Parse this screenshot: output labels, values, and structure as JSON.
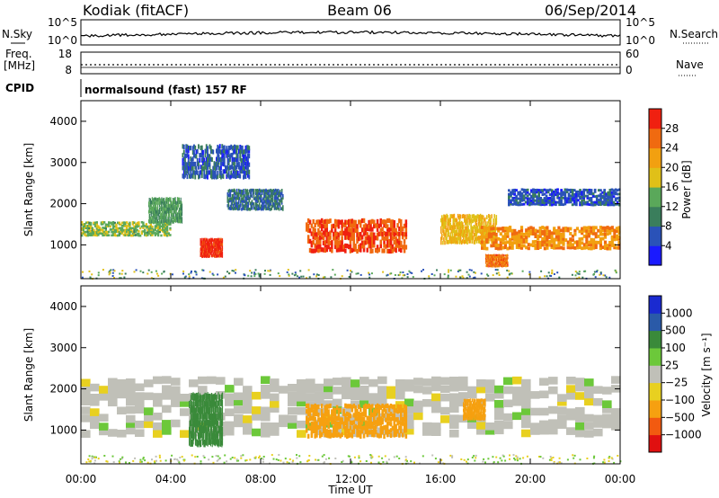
{
  "header": {
    "station": "Kodiak (fitACF)",
    "beam": "Beam 06",
    "date": "06/Sep/2014"
  },
  "aux_panels": {
    "nsky": {
      "left_label": "N.Sky",
      "right_label": "N.Search",
      "left_ticks": [
        "10^5",
        "10^0"
      ],
      "right_ticks": [
        "10^5",
        "10^0"
      ]
    },
    "freq": {
      "left_label": "Freq.",
      "left_unit": "[MHz]",
      "right_label": "Nave",
      "left_ticks": [
        "18",
        "8"
      ],
      "right_ticks": [
        "60",
        "0"
      ]
    },
    "cpid": {
      "label": "CPID",
      "program": "normalsound (fast) 157 RF"
    }
  },
  "colors": {
    "power": [
      "#1a1aff",
      "#2a52b8",
      "#3a7e5c",
      "#5aa85a",
      "#e0c018",
      "#f2a010",
      "#f06a10",
      "#f02010"
    ],
    "velocity": [
      "#e01010",
      "#f25a10",
      "#f6a010",
      "#e8d020",
      "#c0c0b8",
      "#6cc83a",
      "#3a8a3a",
      "#2a5aa8",
      "#1a2ad0"
    ]
  },
  "chart_data": [
    {
      "type": "heatmap",
      "title": "Power",
      "ylabel": "Slant Range [km]",
      "xlabel": "Time UT",
      "x_ticks": [
        "00:00",
        "04:00",
        "08:00",
        "12:00",
        "16:00",
        "20:00",
        "00:00"
      ],
      "y_ticks": [
        "1000",
        "2000",
        "3000",
        "4000"
      ],
      "ylim": [
        180,
        4500
      ],
      "colorbar": {
        "label": "Power [dB]",
        "ticks": [
          "4",
          "8",
          "12",
          "16",
          "20",
          "24",
          "28"
        ],
        "range": [
          0,
          30
        ]
      },
      "regions": [
        {
          "t0": 0.0,
          "t1": 4.0,
          "r0": 1250,
          "r1": 1600,
          "value": 14
        },
        {
          "t0": 3.0,
          "t1": 4.5,
          "r0": 1600,
          "r1": 2200,
          "value": 12
        },
        {
          "t0": 5.3,
          "t1": 6.3,
          "r0": 750,
          "r1": 1200,
          "value": 28
        },
        {
          "t0": 4.5,
          "t1": 7.5,
          "r0": 2700,
          "r1": 3500,
          "value": 6
        },
        {
          "t0": 6.5,
          "t1": 9.0,
          "r0": 1900,
          "r1": 2400,
          "value": 8
        },
        {
          "t0": 10.0,
          "t1": 14.5,
          "r0": 900,
          "r1": 1700,
          "value": 26
        },
        {
          "t0": 16.0,
          "t1": 18.5,
          "r0": 1100,
          "r1": 1800,
          "value": 18
        },
        {
          "t0": 17.8,
          "t1": 24.0,
          "r0": 950,
          "r1": 1500,
          "value": 22
        },
        {
          "t0": 18.0,
          "t1": 19.0,
          "r0": 500,
          "r1": 800,
          "value": 24
        },
        {
          "t0": 19.0,
          "t1": 24.0,
          "r0": 2000,
          "r1": 2400,
          "value": 6
        }
      ]
    },
    {
      "type": "heatmap",
      "title": "Velocity",
      "ylabel": "Slant Range [km]",
      "xlabel": "Time UT",
      "x_ticks": [
        "00:00",
        "04:00",
        "08:00",
        "12:00",
        "16:00",
        "20:00",
        "00:00"
      ],
      "y_ticks": [
        "1000",
        "2000",
        "3000",
        "4000"
      ],
      "ylim": [
        180,
        4500
      ],
      "colorbar": {
        "label": "Velocity [m s⁻¹]",
        "ticks": [
          "1000",
          "500",
          "100",
          "25",
          "−25",
          "−100",
          "−500",
          "−1000"
        ]
      },
      "regions": [
        {
          "t0": 0.0,
          "t1": 24.0,
          "r0": 1000,
          "r1": 2400,
          "value": 0
        },
        {
          "t0": 4.8,
          "t1": 6.3,
          "r0": 750,
          "r1": 2000,
          "value": 300
        },
        {
          "t0": 10.0,
          "t1": 14.5,
          "r0": 900,
          "r1": 1700,
          "value": -300
        },
        {
          "t0": 17.0,
          "t1": 18.0,
          "r0": 1300,
          "r1": 1800,
          "value": -300
        }
      ]
    }
  ],
  "xaxis": {
    "label": "Time UT"
  }
}
